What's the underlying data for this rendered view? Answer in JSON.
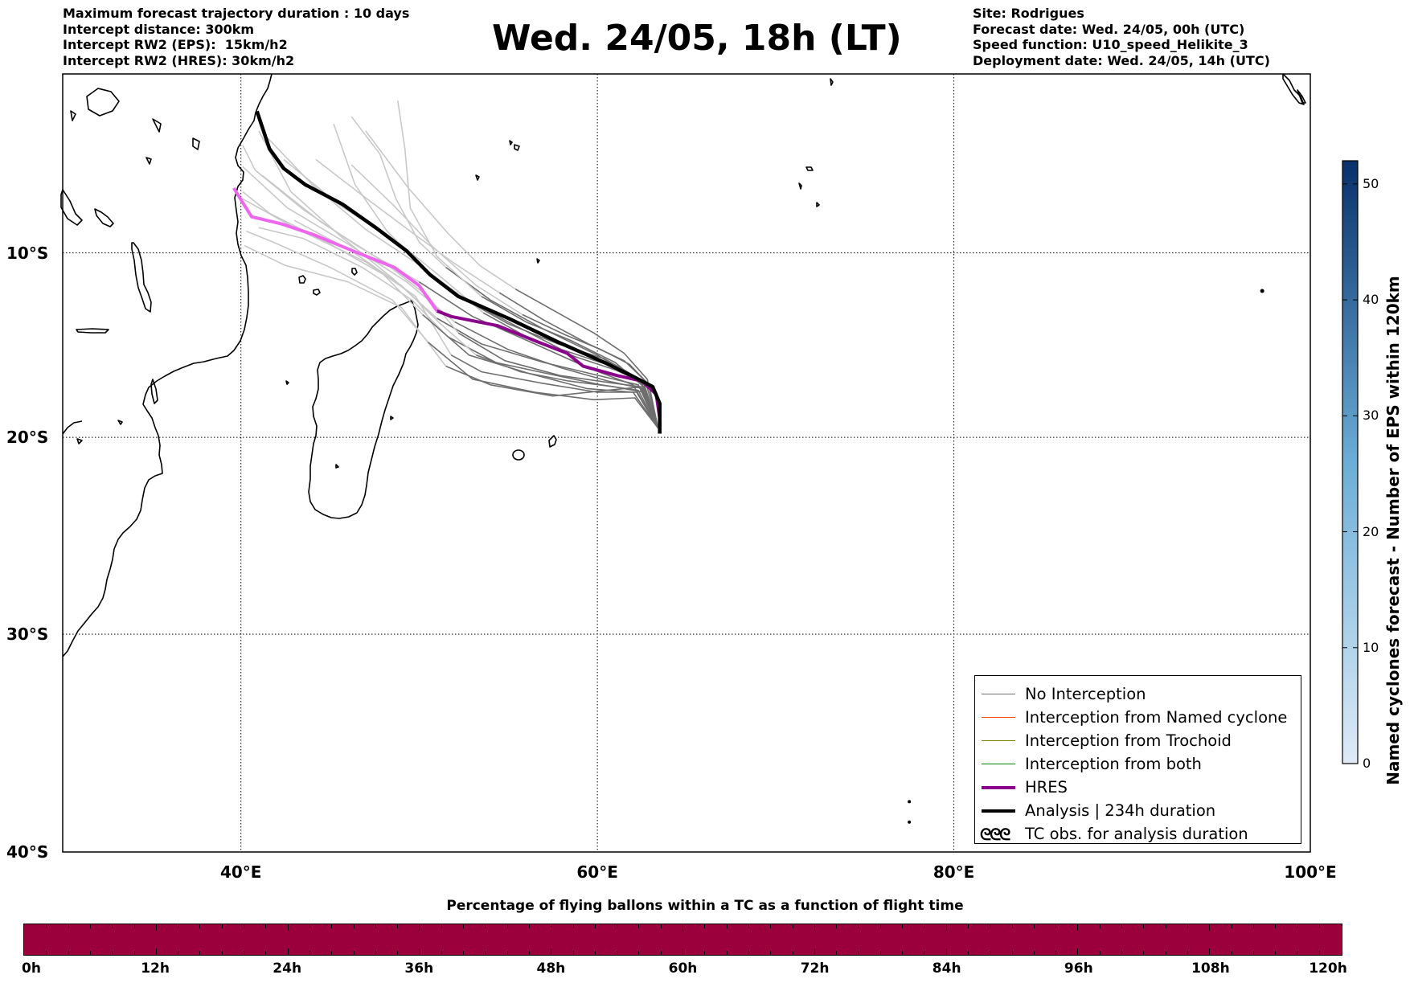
{
  "header": {
    "left_lines": [
      "Maximum forecast trajectory duration : 10 days",
      "Intercept distance: 300km",
      "Intercept RW2 (EPS):  15km/h2",
      "Intercept RW2 (HRES): 30km/h2"
    ],
    "title": "Wed. 24/05, 18h (LT)",
    "right_lines": [
      "Site: Rodrigues",
      "Forecast date: Wed. 24/05, 00h (UTC)",
      "Speed function: U10_speed_Helikite_3",
      "Deployment date: Wed. 24/05, 14h (UTC)"
    ]
  },
  "map": {
    "lat_labels": [
      "10°S",
      "20°S",
      "30°S",
      "40°S"
    ],
    "lon_labels": [
      "40°E",
      "60°E",
      "80°E",
      "100°E"
    ],
    "lon_range": [
      30,
      100
    ],
    "lat_range": [
      -40,
      0
    ],
    "grid": "dotted",
    "colors": {
      "eps_light": "#c8c8c8",
      "eps_dark": "#6e6e6e",
      "hres_early": "#ee66ee",
      "hres_late": "#8b008b",
      "analysis": "#000000",
      "named_cyclone": "#ff4500",
      "trochoid": "#808000",
      "both": "#008000"
    },
    "tracks": {
      "analysis": [
        [
          63.5,
          -19.8
        ],
        [
          63.5,
          -18.2
        ],
        [
          63.1,
          -17.3
        ],
        [
          62.1,
          -16.8
        ],
        [
          60.4,
          -16.0
        ],
        [
          57.8,
          -14.9
        ],
        [
          55.0,
          -13.6
        ],
        [
          52.2,
          -12.4
        ],
        [
          50.6,
          -11.2
        ],
        [
          49.3,
          -9.9
        ],
        [
          47.7,
          -8.7
        ],
        [
          45.7,
          -7.3
        ],
        [
          43.6,
          -6.2
        ],
        [
          42.4,
          -5.3
        ],
        [
          41.6,
          -4.2
        ],
        [
          40.9,
          -2.1
        ]
      ],
      "hres": [
        [
          63.5,
          -19.0
        ],
        [
          63.3,
          -17.7
        ],
        [
          62.5,
          -17.0
        ],
        [
          61.1,
          -16.7
        ],
        [
          59.2,
          -16.2
        ],
        [
          58.3,
          -15.5
        ],
        [
          56.7,
          -14.9
        ],
        [
          54.4,
          -14.0
        ],
        [
          51.8,
          -13.5
        ],
        [
          51.0,
          -13.2
        ],
        [
          50.0,
          -11.8
        ],
        [
          48.6,
          -10.8
        ],
        [
          46.3,
          -9.9
        ],
        [
          44.1,
          -9.0
        ],
        [
          42.3,
          -8.4
        ],
        [
          40.6,
          -8.0
        ],
        [
          39.6,
          -6.4
        ]
      ],
      "eps": [
        [
          [
            63.4,
            -19.5
          ],
          [
            62.6,
            -17.3
          ],
          [
            60.5,
            -17.5
          ],
          [
            57.5,
            -17.8
          ],
          [
            54.0,
            -17.2
          ],
          [
            51.5,
            -16.2
          ],
          [
            49.0,
            -13.0
          ],
          [
            46.0,
            -11.6
          ],
          [
            42.5,
            -10.7
          ],
          [
            40.2,
            -9.6
          ]
        ],
        [
          [
            63.4,
            -19.5
          ],
          [
            62.4,
            -17.0
          ],
          [
            60.8,
            -16.2
          ],
          [
            58.0,
            -15.3
          ],
          [
            55.0,
            -13.8
          ],
          [
            52.5,
            -12.5
          ],
          [
            50.2,
            -10.8
          ],
          [
            47.0,
            -8.7
          ],
          [
            44.0,
            -6.2
          ],
          [
            41.5,
            -3.6
          ]
        ],
        [
          [
            63.4,
            -19.5
          ],
          [
            62.3,
            -17.2
          ],
          [
            60.5,
            -16.8
          ],
          [
            57.0,
            -16.0
          ],
          [
            53.5,
            -15.0
          ],
          [
            51.0,
            -13.6
          ],
          [
            48.5,
            -11.4
          ],
          [
            45.5,
            -9.0
          ],
          [
            42.8,
            -6.6
          ],
          [
            41.0,
            -3.2
          ]
        ],
        [
          [
            63.4,
            -19.5
          ],
          [
            62.5,
            -17.1
          ],
          [
            60.0,
            -15.6
          ],
          [
            57.0,
            -14.2
          ],
          [
            54.0,
            -12.6
          ],
          [
            51.5,
            -10.8
          ],
          [
            50.0,
            -9.4
          ],
          [
            48.7,
            -7.0
          ],
          [
            47.8,
            -4.5
          ],
          [
            46.2,
            -2.4
          ]
        ],
        [
          [
            63.4,
            -19.5
          ],
          [
            62.6,
            -17.3
          ],
          [
            61.0,
            -16.0
          ],
          [
            58.5,
            -14.8
          ],
          [
            56.0,
            -13.8
          ],
          [
            53.5,
            -12.4
          ],
          [
            51.0,
            -10.2
          ],
          [
            49.5,
            -7.5
          ],
          [
            49.2,
            -4.2
          ],
          [
            48.8,
            -1.5
          ]
        ],
        [
          [
            63.4,
            -19.5
          ],
          [
            62.0,
            -17.2
          ],
          [
            59.5,
            -16.3
          ],
          [
            56.5,
            -15.0
          ],
          [
            53.0,
            -13.5
          ],
          [
            50.0,
            -11.6
          ],
          [
            46.5,
            -9.6
          ],
          [
            43.5,
            -7.6
          ],
          [
            40.8,
            -5.4
          ],
          [
            40.1,
            -4.0
          ]
        ],
        [
          [
            63.4,
            -19.5
          ],
          [
            62.2,
            -17.6
          ],
          [
            60.0,
            -17.6
          ],
          [
            56.8,
            -17.1
          ],
          [
            53.5,
            -16.5
          ],
          [
            51.8,
            -15.6
          ],
          [
            49.8,
            -12.4
          ],
          [
            47.0,
            -10.5
          ],
          [
            43.0,
            -8.6
          ],
          [
            40.1,
            -7.0
          ]
        ],
        [
          [
            63.4,
            -19.5
          ],
          [
            62.4,
            -17.3
          ],
          [
            60.8,
            -17.1
          ],
          [
            57.9,
            -16.7
          ],
          [
            54.8,
            -15.9
          ],
          [
            52.2,
            -14.4
          ],
          [
            50.5,
            -12.4
          ],
          [
            48.0,
            -10.5
          ],
          [
            44.5,
            -8.3
          ],
          [
            41.2,
            -5.7
          ]
        ],
        [
          [
            63.4,
            -19.5
          ],
          [
            62.7,
            -17.0
          ],
          [
            61.5,
            -15.9
          ],
          [
            59.5,
            -15.0
          ],
          [
            57.0,
            -13.7
          ],
          [
            54.5,
            -12.2
          ],
          [
            52.0,
            -10.6
          ],
          [
            49.5,
            -8.8
          ],
          [
            46.8,
            -6.8
          ],
          [
            44.2,
            -4.8
          ]
        ],
        [
          [
            63.4,
            -19.5
          ],
          [
            62.5,
            -17.4
          ],
          [
            60.6,
            -17.0
          ],
          [
            58.0,
            -16.3
          ],
          [
            55.0,
            -15.3
          ],
          [
            52.0,
            -13.8
          ],
          [
            49.3,
            -11.6
          ],
          [
            46.0,
            -9.5
          ],
          [
            42.6,
            -7.5
          ],
          [
            40.1,
            -5.2
          ]
        ],
        [
          [
            63.4,
            -19.5
          ],
          [
            62.1,
            -17.9
          ],
          [
            59.8,
            -18.0
          ],
          [
            56.5,
            -17.6
          ],
          [
            53.0,
            -16.9
          ],
          [
            50.5,
            -14.9
          ],
          [
            48.5,
            -12.6
          ],
          [
            45.0,
            -10.8
          ],
          [
            41.8,
            -9.4
          ],
          [
            40.3,
            -8.8
          ]
        ],
        [
          [
            63.4,
            -19.5
          ],
          [
            62.9,
            -17.2
          ],
          [
            61.8,
            -16.1
          ],
          [
            60.2,
            -15.3
          ],
          [
            58.2,
            -14.5
          ],
          [
            55.8,
            -13.4
          ],
          [
            53.2,
            -11.8
          ],
          [
            50.8,
            -9.7
          ],
          [
            48.6,
            -7.4
          ],
          [
            46.2,
            -5.1
          ]
        ],
        [
          [
            63.4,
            -19.5
          ],
          [
            62.3,
            -17.5
          ],
          [
            60.2,
            -17.2
          ],
          [
            57.2,
            -16.6
          ],
          [
            54.3,
            -16.0
          ],
          [
            51.6,
            -14.6
          ],
          [
            49.6,
            -12.6
          ],
          [
            46.8,
            -10.8
          ],
          [
            43.5,
            -9.2
          ],
          [
            41.0,
            -8.6
          ]
        ],
        [
          [
            63.4,
            -19.5
          ],
          [
            62.6,
            -17.1
          ],
          [
            61.0,
            -16.4
          ],
          [
            58.8,
            -15.7
          ],
          [
            56.2,
            -14.7
          ],
          [
            53.6,
            -13.3
          ],
          [
            51.3,
            -11.4
          ],
          [
            48.8,
            -9.4
          ],
          [
            45.6,
            -7.4
          ],
          [
            42.4,
            -4.8
          ]
        ],
        [
          [
            63.4,
            -19.5
          ],
          [
            62.8,
            -16.9
          ],
          [
            61.5,
            -15.5
          ],
          [
            59.8,
            -14.4
          ],
          [
            57.6,
            -13.2
          ],
          [
            55.4,
            -12.0
          ],
          [
            53.4,
            -10.7
          ],
          [
            51.6,
            -8.9
          ],
          [
            49.4,
            -6.4
          ],
          [
            47.0,
            -3.2
          ]
        ],
        [
          [
            63.4,
            -19.5
          ],
          [
            62.0,
            -17.6
          ],
          [
            59.4,
            -17.4
          ],
          [
            56.2,
            -16.6
          ],
          [
            52.8,
            -15.6
          ],
          [
            50.2,
            -13.4
          ],
          [
            48.0,
            -11.2
          ],
          [
            44.8,
            -9.4
          ],
          [
            41.6,
            -7.8
          ],
          [
            40.1,
            -6.6
          ]
        ],
        [
          [
            63.4,
            -19.5
          ],
          [
            62.4,
            -16.9
          ],
          [
            60.4,
            -15.8
          ],
          [
            57.8,
            -15.0
          ],
          [
            55.0,
            -13.9
          ],
          [
            52.6,
            -12.6
          ],
          [
            50.4,
            -11.0
          ],
          [
            48.2,
            -8.8
          ],
          [
            46.4,
            -6.2
          ],
          [
            45.2,
            -2.8
          ]
        ],
        [
          [
            63.4,
            -19.5
          ],
          [
            62.6,
            -17.6
          ],
          [
            60.9,
            -17.3
          ],
          [
            58.4,
            -17.0
          ],
          [
            55.7,
            -16.5
          ],
          [
            53.2,
            -15.6
          ],
          [
            51.2,
            -13.9
          ],
          [
            49.0,
            -11.8
          ],
          [
            46.2,
            -9.9
          ],
          [
            43.0,
            -8.2
          ]
        ]
      ]
    },
    "extra_marks": {
      "right_island": [
        97.3,
        -12.1
      ],
      "sw_islands": [
        [
          77.5,
          -37.8
        ],
        [
          77.5,
          -38.7
        ]
      ]
    }
  },
  "legend": {
    "items": [
      {
        "label": "No Interception",
        "color": "#6e6e6e",
        "width": 1.2
      },
      {
        "label": "Interception from Named cyclone",
        "color": "#ff4500",
        "width": 1.2
      },
      {
        "label": "Interception from Trochoid",
        "color": "#808000",
        "width": 1.2
      },
      {
        "label": "Interception from both",
        "color": "#008000",
        "width": 1.2
      },
      {
        "label": "HRES",
        "color": "#8b008b",
        "width": 4
      },
      {
        "label": "Analysis | 234h duration",
        "color": "#000000",
        "width": 4
      }
    ],
    "tc_symbol": "ᘓᘓᘓ",
    "tc_label": "TC obs. for analysis duration"
  },
  "colorbar": {
    "label": "Named cyclones forecast - Number of EPS within 120km",
    "ticks": [
      "0",
      "10",
      "20",
      "30",
      "40",
      "50"
    ],
    "tick_values": [
      0,
      10,
      20,
      30,
      40,
      50
    ],
    "range": [
      0,
      52
    ],
    "color_low": "#deebf7",
    "color_mid": "#6baed6",
    "color_high": "#08306b"
  },
  "percentage_bar": {
    "title": "Percentage of flying ballons within a TC as a function of flight time",
    "color": "#9c003c",
    "tick_labels": [
      "0h",
      "12h",
      "24h",
      "36h",
      "48h",
      "60h",
      "72h",
      "84h",
      "96h",
      "108h",
      "120h"
    ],
    "range_hours": [
      0,
      120
    ]
  }
}
